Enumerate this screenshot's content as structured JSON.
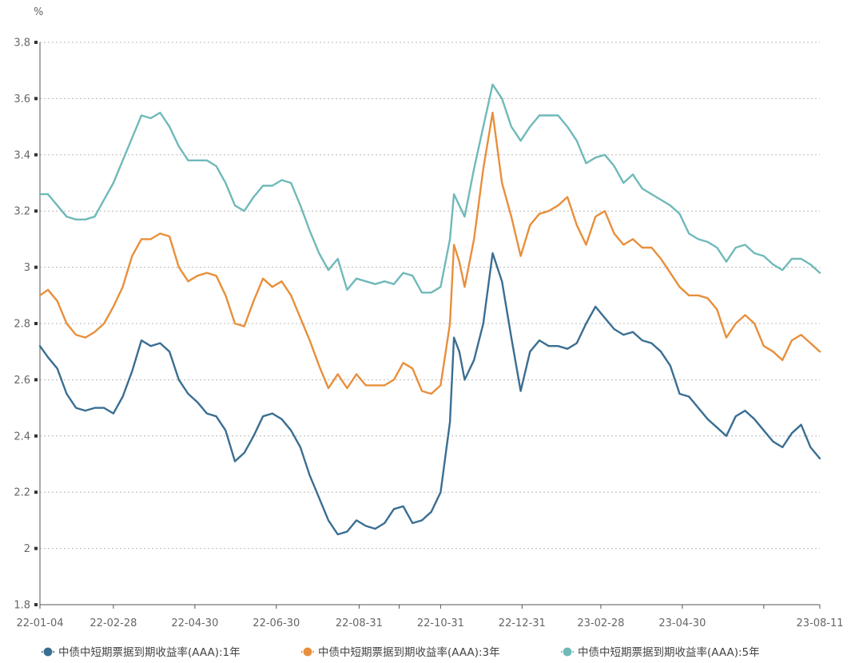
{
  "chart_data": {
    "type": "line",
    "title": "",
    "ylabel": "%",
    "xlabel": "",
    "ylim": [
      1.8,
      3.8
    ],
    "yticks": [
      "1.8",
      "2",
      "2.2",
      "2.4",
      "2.6",
      "2.8",
      "3",
      "3.2",
      "3.4",
      "3.6",
      "3.8"
    ],
    "xlim": [
      "2022-01-04",
      "2023-08-11"
    ],
    "xticks": [
      {
        "date": "2022-01-04",
        "label": "22-01-04"
      },
      {
        "date": "2022-02-28",
        "label": "22-02-28"
      },
      {
        "date": "2022-04-30",
        "label": "22-04-30"
      },
      {
        "date": "2022-06-30",
        "label": "22-06-30"
      },
      {
        "date": "2022-08-31",
        "label": "22-08-31"
      },
      {
        "date": "2022-10-31",
        "label": "22-10-31"
      },
      {
        "date": "2022-12-31",
        "label": "22-12-31"
      },
      {
        "date": "2023-02-28",
        "label": "23-02-28"
      },
      {
        "date": "2023-04-30",
        "label": "23-04-30"
      },
      {
        "date": "2023-08-11",
        "label": "23-08-11"
      }
    ],
    "grid": true,
    "legend_position": "bottom",
    "series": [
      {
        "name": "中债中短期票据到期收益率(AAA):1年",
        "color": "#3a6e92",
        "points": [
          [
            "2022-01-04",
            2.72
          ],
          [
            "2022-01-10",
            2.68
          ],
          [
            "2022-01-17",
            2.64
          ],
          [
            "2022-01-24",
            2.55
          ],
          [
            "2022-01-31",
            2.5
          ],
          [
            "2022-02-07",
            2.49
          ],
          [
            "2022-02-14",
            2.5
          ],
          [
            "2022-02-21",
            2.5
          ],
          [
            "2022-02-28",
            2.48
          ],
          [
            "2022-03-07",
            2.54
          ],
          [
            "2022-03-14",
            2.63
          ],
          [
            "2022-03-21",
            2.74
          ],
          [
            "2022-03-28",
            2.72
          ],
          [
            "2022-04-04",
            2.73
          ],
          [
            "2022-04-11",
            2.7
          ],
          [
            "2022-04-18",
            2.6
          ],
          [
            "2022-04-25",
            2.55
          ],
          [
            "2022-05-02",
            2.52
          ],
          [
            "2022-05-09",
            2.48
          ],
          [
            "2022-05-16",
            2.47
          ],
          [
            "2022-05-23",
            2.42
          ],
          [
            "2022-05-30",
            2.31
          ],
          [
            "2022-06-06",
            2.34
          ],
          [
            "2022-06-13",
            2.4
          ],
          [
            "2022-06-20",
            2.47
          ],
          [
            "2022-06-27",
            2.48
          ],
          [
            "2022-07-04",
            2.46
          ],
          [
            "2022-07-11",
            2.42
          ],
          [
            "2022-07-18",
            2.36
          ],
          [
            "2022-07-25",
            2.26
          ],
          [
            "2022-08-01",
            2.18
          ],
          [
            "2022-08-08",
            2.1
          ],
          [
            "2022-08-15",
            2.05
          ],
          [
            "2022-08-22",
            2.06
          ],
          [
            "2022-08-29",
            2.1
          ],
          [
            "2022-09-05",
            2.08
          ],
          [
            "2022-09-12",
            2.07
          ],
          [
            "2022-09-19",
            2.09
          ],
          [
            "2022-09-26",
            2.14
          ],
          [
            "2022-10-03",
            2.15
          ],
          [
            "2022-10-10",
            2.09
          ],
          [
            "2022-10-17",
            2.1
          ],
          [
            "2022-10-24",
            2.13
          ],
          [
            "2022-10-31",
            2.2
          ],
          [
            "2022-11-07",
            2.45
          ],
          [
            "2022-11-10",
            2.75
          ],
          [
            "2022-11-14",
            2.7
          ],
          [
            "2022-11-18",
            2.6
          ],
          [
            "2022-11-25",
            2.67
          ],
          [
            "2022-12-02",
            2.8
          ],
          [
            "2022-12-09",
            3.05
          ],
          [
            "2022-12-16",
            2.95
          ],
          [
            "2022-12-23",
            2.75
          ],
          [
            "2022-12-30",
            2.56
          ],
          [
            "2023-01-06",
            2.7
          ],
          [
            "2023-01-13",
            2.74
          ],
          [
            "2023-01-20",
            2.72
          ],
          [
            "2023-01-27",
            2.72
          ],
          [
            "2023-02-03",
            2.71
          ],
          [
            "2023-02-10",
            2.73
          ],
          [
            "2023-02-17",
            2.8
          ],
          [
            "2023-02-24",
            2.86
          ],
          [
            "2023-03-03",
            2.82
          ],
          [
            "2023-03-10",
            2.78
          ],
          [
            "2023-03-17",
            2.76
          ],
          [
            "2023-03-24",
            2.77
          ],
          [
            "2023-03-31",
            2.74
          ],
          [
            "2023-04-07",
            2.73
          ],
          [
            "2023-04-14",
            2.7
          ],
          [
            "2023-04-21",
            2.65
          ],
          [
            "2023-04-28",
            2.55
          ],
          [
            "2023-05-05",
            2.54
          ],
          [
            "2023-05-12",
            2.5
          ],
          [
            "2023-05-19",
            2.46
          ],
          [
            "2023-05-26",
            2.43
          ],
          [
            "2023-06-02",
            2.4
          ],
          [
            "2023-06-09",
            2.47
          ],
          [
            "2023-06-16",
            2.49
          ],
          [
            "2023-06-23",
            2.46
          ],
          [
            "2023-06-30",
            2.42
          ],
          [
            "2023-07-07",
            2.38
          ],
          [
            "2023-07-14",
            2.36
          ],
          [
            "2023-07-21",
            2.41
          ],
          [
            "2023-07-28",
            2.44
          ],
          [
            "2023-08-04",
            2.36
          ],
          [
            "2023-08-11",
            2.32
          ]
        ]
      },
      {
        "name": "中债中短期票据到期收益率(AAA):3年",
        "color": "#e88f3b",
        "points": [
          [
            "2022-01-04",
            2.9
          ],
          [
            "2022-01-10",
            2.92
          ],
          [
            "2022-01-17",
            2.88
          ],
          [
            "2022-01-24",
            2.8
          ],
          [
            "2022-01-31",
            2.76
          ],
          [
            "2022-02-07",
            2.75
          ],
          [
            "2022-02-14",
            2.77
          ],
          [
            "2022-02-21",
            2.8
          ],
          [
            "2022-02-28",
            2.86
          ],
          [
            "2022-03-07",
            2.93
          ],
          [
            "2022-03-14",
            3.04
          ],
          [
            "2022-03-21",
            3.1
          ],
          [
            "2022-03-28",
            3.1
          ],
          [
            "2022-04-04",
            3.12
          ],
          [
            "2022-04-11",
            3.11
          ],
          [
            "2022-04-18",
            3.0
          ],
          [
            "2022-04-25",
            2.95
          ],
          [
            "2022-05-02",
            2.97
          ],
          [
            "2022-05-09",
            2.98
          ],
          [
            "2022-05-16",
            2.97
          ],
          [
            "2022-05-23",
            2.9
          ],
          [
            "2022-05-30",
            2.8
          ],
          [
            "2022-06-06",
            2.79
          ],
          [
            "2022-06-13",
            2.88
          ],
          [
            "2022-06-20",
            2.96
          ],
          [
            "2022-06-27",
            2.93
          ],
          [
            "2022-07-04",
            2.95
          ],
          [
            "2022-07-11",
            2.9
          ],
          [
            "2022-07-18",
            2.82
          ],
          [
            "2022-07-25",
            2.74
          ],
          [
            "2022-08-01",
            2.65
          ],
          [
            "2022-08-08",
            2.57
          ],
          [
            "2022-08-15",
            2.62
          ],
          [
            "2022-08-22",
            2.57
          ],
          [
            "2022-08-29",
            2.62
          ],
          [
            "2022-09-05",
            2.58
          ],
          [
            "2022-09-12",
            2.58
          ],
          [
            "2022-09-19",
            2.58
          ],
          [
            "2022-09-26",
            2.6
          ],
          [
            "2022-10-03",
            2.66
          ],
          [
            "2022-10-10",
            2.64
          ],
          [
            "2022-10-17",
            2.56
          ],
          [
            "2022-10-24",
            2.55
          ],
          [
            "2022-10-31",
            2.58
          ],
          [
            "2022-11-07",
            2.8
          ],
          [
            "2022-11-10",
            3.08
          ],
          [
            "2022-11-14",
            3.02
          ],
          [
            "2022-11-18",
            2.93
          ],
          [
            "2022-11-25",
            3.1
          ],
          [
            "2022-12-02",
            3.35
          ],
          [
            "2022-12-09",
            3.55
          ],
          [
            "2022-12-16",
            3.3
          ],
          [
            "2022-12-23",
            3.18
          ],
          [
            "2022-12-30",
            3.04
          ],
          [
            "2023-01-06",
            3.15
          ],
          [
            "2023-01-13",
            3.19
          ],
          [
            "2023-01-20",
            3.2
          ],
          [
            "2023-01-27",
            3.22
          ],
          [
            "2023-02-03",
            3.25
          ],
          [
            "2023-02-10",
            3.15
          ],
          [
            "2023-02-17",
            3.08
          ],
          [
            "2023-02-24",
            3.18
          ],
          [
            "2023-03-03",
            3.2
          ],
          [
            "2023-03-10",
            3.12
          ],
          [
            "2023-03-17",
            3.08
          ],
          [
            "2023-03-24",
            3.1
          ],
          [
            "2023-03-31",
            3.07
          ],
          [
            "2023-04-07",
            3.07
          ],
          [
            "2023-04-14",
            3.03
          ],
          [
            "2023-04-21",
            2.98
          ],
          [
            "2023-04-28",
            2.93
          ],
          [
            "2023-05-05",
            2.9
          ],
          [
            "2023-05-12",
            2.9
          ],
          [
            "2023-05-19",
            2.89
          ],
          [
            "2023-05-26",
            2.85
          ],
          [
            "2023-06-02",
            2.75
          ],
          [
            "2023-06-09",
            2.8
          ],
          [
            "2023-06-16",
            2.83
          ],
          [
            "2023-06-23",
            2.8
          ],
          [
            "2023-06-30",
            2.72
          ],
          [
            "2023-07-07",
            2.7
          ],
          [
            "2023-07-14",
            2.67
          ],
          [
            "2023-07-21",
            2.74
          ],
          [
            "2023-07-28",
            2.76
          ],
          [
            "2023-08-04",
            2.73
          ],
          [
            "2023-08-11",
            2.7
          ]
        ]
      },
      {
        "name": "中债中短期票据到期收益率(AAA):5年",
        "color": "#70b9b9",
        "points": [
          [
            "2022-01-04",
            3.26
          ],
          [
            "2022-01-10",
            3.26
          ],
          [
            "2022-01-17",
            3.22
          ],
          [
            "2022-01-24",
            3.18
          ],
          [
            "2022-01-31",
            3.17
          ],
          [
            "2022-02-07",
            3.17
          ],
          [
            "2022-02-14",
            3.18
          ],
          [
            "2022-02-21",
            3.24
          ],
          [
            "2022-02-28",
            3.3
          ],
          [
            "2022-03-07",
            3.38
          ],
          [
            "2022-03-14",
            3.46
          ],
          [
            "2022-03-21",
            3.54
          ],
          [
            "2022-03-28",
            3.53
          ],
          [
            "2022-04-04",
            3.55
          ],
          [
            "2022-04-11",
            3.5
          ],
          [
            "2022-04-18",
            3.43
          ],
          [
            "2022-04-25",
            3.38
          ],
          [
            "2022-05-02",
            3.38
          ],
          [
            "2022-05-09",
            3.38
          ],
          [
            "2022-05-16",
            3.36
          ],
          [
            "2022-05-23",
            3.3
          ],
          [
            "2022-05-30",
            3.22
          ],
          [
            "2022-06-06",
            3.2
          ],
          [
            "2022-06-13",
            3.25
          ],
          [
            "2022-06-20",
            3.29
          ],
          [
            "2022-06-27",
            3.29
          ],
          [
            "2022-07-04",
            3.31
          ],
          [
            "2022-07-11",
            3.3
          ],
          [
            "2022-07-18",
            3.22
          ],
          [
            "2022-07-25",
            3.13
          ],
          [
            "2022-08-01",
            3.05
          ],
          [
            "2022-08-08",
            2.99
          ],
          [
            "2022-08-15",
            3.03
          ],
          [
            "2022-08-22",
            2.92
          ],
          [
            "2022-08-29",
            2.96
          ],
          [
            "2022-09-05",
            2.95
          ],
          [
            "2022-09-12",
            2.94
          ],
          [
            "2022-09-19",
            2.95
          ],
          [
            "2022-09-26",
            2.94
          ],
          [
            "2022-10-03",
            2.98
          ],
          [
            "2022-10-10",
            2.97
          ],
          [
            "2022-10-17",
            2.91
          ],
          [
            "2022-10-24",
            2.91
          ],
          [
            "2022-10-31",
            2.93
          ],
          [
            "2022-11-07",
            3.1
          ],
          [
            "2022-11-10",
            3.26
          ],
          [
            "2022-11-14",
            3.22
          ],
          [
            "2022-11-18",
            3.18
          ],
          [
            "2022-11-25",
            3.35
          ],
          [
            "2022-12-02",
            3.5
          ],
          [
            "2022-12-09",
            3.65
          ],
          [
            "2022-12-16",
            3.6
          ],
          [
            "2022-12-23",
            3.5
          ],
          [
            "2022-12-30",
            3.45
          ],
          [
            "2023-01-06",
            3.5
          ],
          [
            "2023-01-13",
            3.54
          ],
          [
            "2023-01-20",
            3.54
          ],
          [
            "2023-01-27",
            3.54
          ],
          [
            "2023-02-03",
            3.5
          ],
          [
            "2023-02-10",
            3.45
          ],
          [
            "2023-02-17",
            3.37
          ],
          [
            "2023-02-24",
            3.39
          ],
          [
            "2023-03-03",
            3.4
          ],
          [
            "2023-03-10",
            3.36
          ],
          [
            "2023-03-17",
            3.3
          ],
          [
            "2023-03-24",
            3.33
          ],
          [
            "2023-03-31",
            3.28
          ],
          [
            "2023-04-07",
            3.26
          ],
          [
            "2023-04-14",
            3.24
          ],
          [
            "2023-04-21",
            3.22
          ],
          [
            "2023-04-28",
            3.19
          ],
          [
            "2023-05-05",
            3.12
          ],
          [
            "2023-05-12",
            3.1
          ],
          [
            "2023-05-19",
            3.09
          ],
          [
            "2023-05-26",
            3.07
          ],
          [
            "2023-06-02",
            3.02
          ],
          [
            "2023-06-09",
            3.07
          ],
          [
            "2023-06-16",
            3.08
          ],
          [
            "2023-06-23",
            3.05
          ],
          [
            "2023-06-30",
            3.04
          ],
          [
            "2023-07-07",
            3.01
          ],
          [
            "2023-07-14",
            2.99
          ],
          [
            "2023-07-21",
            3.03
          ],
          [
            "2023-07-28",
            3.03
          ],
          [
            "2023-08-04",
            3.01
          ],
          [
            "2023-08-11",
            2.98
          ]
        ]
      }
    ]
  }
}
